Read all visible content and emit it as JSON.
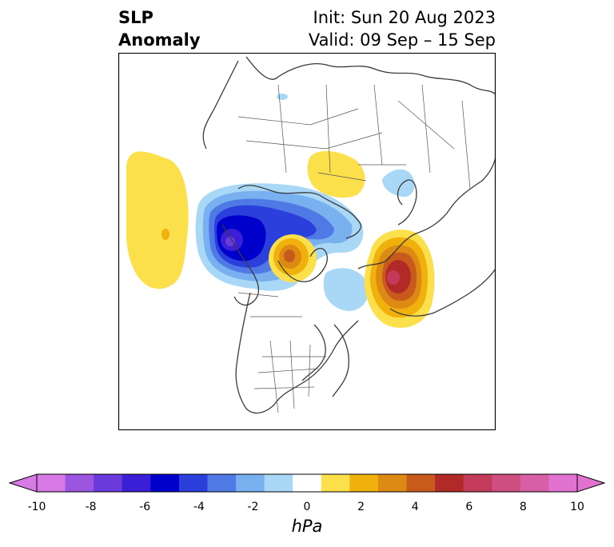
{
  "title": {
    "left_line1": "SLP",
    "left_line2": "Anomaly",
    "right_line1": "Init: Sun 20 Aug 2023",
    "right_line2": "Valid: 09 Sep – 15 Sep"
  },
  "colorbar": {
    "unit": "hPa",
    "ticks": [
      "-10",
      "-8",
      "-6",
      "-4",
      "-2",
      "0",
      "2",
      "4",
      "6",
      "8",
      "10"
    ],
    "levels": [
      -10,
      -9,
      -8,
      -7,
      -6,
      -5,
      -4,
      -3,
      -2,
      -1,
      1,
      2,
      3,
      4,
      5,
      6,
      7,
      8,
      9,
      10
    ],
    "colors": [
      "#d77ae6",
      "#9c55e0",
      "#6b3adb",
      "#3a1fd6",
      "#0000cc",
      "#2a3fdb",
      "#4f7ae6",
      "#78b0f0",
      "#a9d8f7",
      "#ffffff",
      "#fbe04b",
      "#f0b10c",
      "#dc8a14",
      "#c85a1c",
      "#b22a28",
      "#c43a5a",
      "#cf4e80",
      "#d85fa5",
      "#e272d0"
    ],
    "extend": "both"
  },
  "map": {
    "projection": "north-polar-stereographic",
    "field": "sea-level-pressure-anomaly",
    "features": [
      "Pacific high anomaly",
      "Alaska/Yukon low anomaly",
      "Hudson Bay high anomaly",
      "North Atlantic high anomaly",
      "Siberian high anomaly"
    ]
  }
}
